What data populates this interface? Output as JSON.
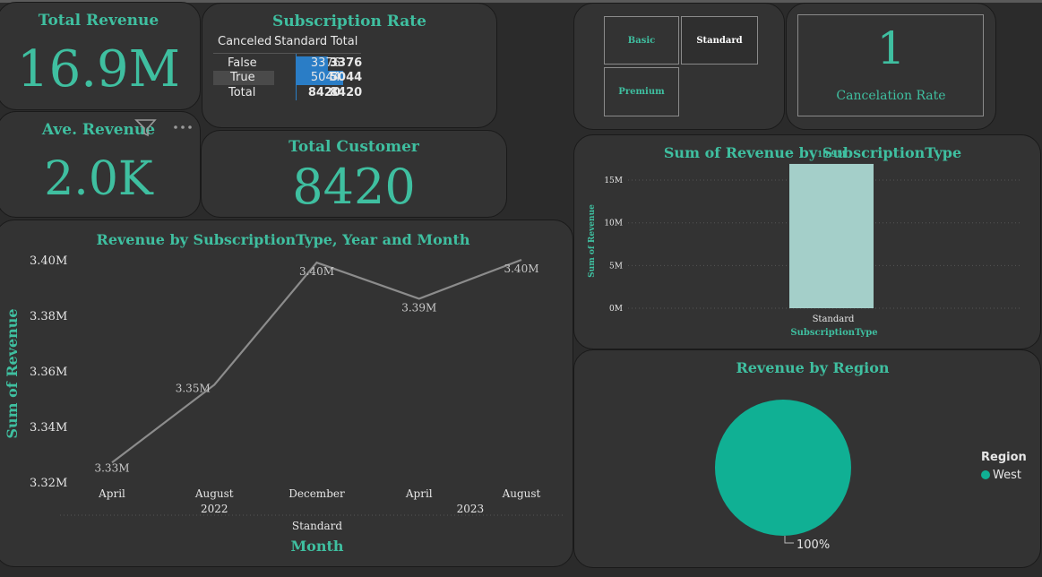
{
  "kpi": {
    "total_revenue_title": "Total Revenue",
    "total_revenue_value": "16.9M",
    "avg_revenue_title": "Ave. Revenue",
    "avg_revenue_value": "2.0K",
    "total_customer_title": "Total Customer",
    "total_customer_value": "8420",
    "cancel_rate_value": "1",
    "cancel_rate_title": "Cancelation Rate"
  },
  "subscription_table": {
    "title": "Subscription Rate",
    "headers": [
      "Canceled",
      "Standard",
      "Total"
    ],
    "rows": [
      {
        "label": "False",
        "standard": "3376",
        "total": "3376",
        "bar": 0.67
      },
      {
        "label": "True",
        "standard": "5044",
        "total": "5044",
        "bar": 1.0
      },
      {
        "label": "Total",
        "standard": "8420",
        "total": "8420"
      }
    ]
  },
  "slicer": {
    "items": [
      "Basic",
      "Standard",
      "Premium"
    ],
    "selected": "Standard"
  },
  "colors": {
    "accent": "#3fbfa0",
    "bar": "#a4cfc9",
    "pie": "#10b094",
    "line": "#8c8c8c",
    "table_bar": "#2a7dc6"
  },
  "visual_header": {
    "filter_icon": "filter-icon",
    "more_icon": "more-options-icon"
  },
  "chart_data": [
    {
      "type": "line",
      "title": "Revenue by SubscriptionType, Year and Month",
      "xlabel": "Month",
      "ylabel": "Sum of Revenue",
      "categories": [
        "April",
        "August",
        "December",
        "April",
        "August"
      ],
      "year_groups": [
        {
          "label": "2022",
          "span": [
            0,
            2
          ]
        },
        {
          "label": "2023",
          "span": [
            3,
            4
          ]
        }
      ],
      "group_label": "Standard",
      "values": [
        3.327,
        3.355,
        3.399,
        3.386,
        3.4
      ],
      "data_labels": [
        "3.33M",
        "3.35M",
        "3.40M",
        "3.39M",
        "3.40M"
      ],
      "yticks": [
        "3.32M",
        "3.34M",
        "3.36M",
        "3.38M",
        "3.40M"
      ],
      "ylim": [
        3.32,
        3.4
      ]
    },
    {
      "type": "bar",
      "title": "Sum of Revenue by SubscriptionType",
      "xlabel": "SubscriptionType",
      "ylabel": "Sum of Revenue",
      "categories": [
        "Standard"
      ],
      "values": [
        16.9
      ],
      "data_labels": [
        "16.9M"
      ],
      "yticks": [
        "0M",
        "5M",
        "10M",
        "15M"
      ],
      "ylim": [
        0,
        17
      ]
    },
    {
      "type": "pie",
      "title": "Revenue by Region",
      "legend_title": "Region",
      "categories": [
        "West"
      ],
      "values": [
        100
      ],
      "data_labels": [
        "100%"
      ]
    }
  ]
}
